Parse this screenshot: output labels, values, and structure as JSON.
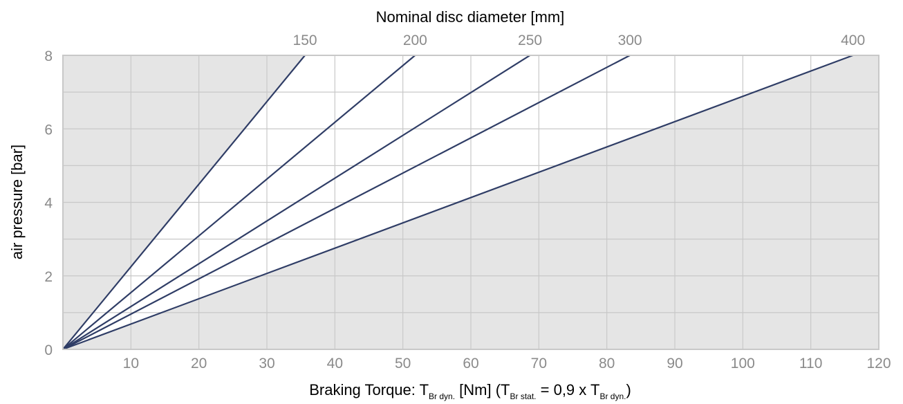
{
  "chart_data": {
    "type": "line",
    "title": "Nominal disc diameter [mm]",
    "xlabel": {
      "main": "Braking Torque: T",
      "sub1": "Br dyn.",
      "mid1": " [Nm] (T",
      "sub2": "Br stat.",
      "mid2": " = 0,9 x T",
      "sub3": "Br dyn.",
      "end": ")"
    },
    "ylabel": "air pressure [bar]",
    "xlim": [
      0,
      120
    ],
    "ylim": [
      0,
      8
    ],
    "x_ticks": [
      10,
      20,
      30,
      40,
      50,
      60,
      70,
      80,
      90,
      100,
      110,
      120
    ],
    "y_ticks": [
      0,
      2,
      4,
      6,
      8
    ],
    "grid": true,
    "colors": {
      "line": "#2f3d66",
      "plot_bg": "#e5e5e5",
      "region": "#ffffff",
      "grid": "#c8c8c8",
      "tick": "#8a8a8a"
    },
    "series": [
      {
        "name": "150",
        "x": [
          0,
          35.6
        ],
        "y": [
          0,
          8
        ]
      },
      {
        "name": "200",
        "x": [
          0,
          51.8
        ],
        "y": [
          0,
          8
        ]
      },
      {
        "name": "250",
        "x": [
          0,
          68.7
        ],
        "y": [
          0,
          8
        ]
      },
      {
        "name": "300",
        "x": [
          0,
          83.4
        ],
        "y": [
          0,
          8
        ]
      },
      {
        "name": "400",
        "x": [
          0,
          116.2
        ],
        "y": [
          0,
          8
        ]
      }
    ],
    "shaded_region_between": [
      "150",
      "400"
    ]
  }
}
